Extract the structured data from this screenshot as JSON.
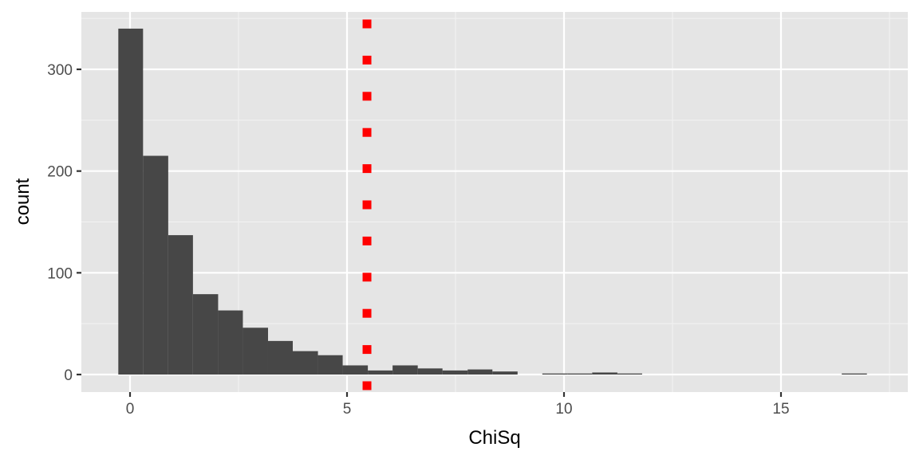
{
  "chart_data": {
    "type": "bar",
    "subtype": "histogram",
    "title": "",
    "xlabel": "ChiSq",
    "ylabel": "count",
    "xlim": [
      -1.15,
      17.65
    ],
    "ylim": [
      -17,
      357
    ],
    "x_ticks": [
      0,
      5,
      10,
      15
    ],
    "x_tick_labels": [
      "0",
      "5",
      "10",
      "15"
    ],
    "y_ticks": [
      0,
      100,
      200,
      300
    ],
    "y_tick_labels": [
      "0",
      "100",
      "200",
      "300"
    ],
    "grid": true,
    "legend": null,
    "bin_width": 0.575,
    "bins": [
      {
        "x0": -0.27,
        "x1": 0.3,
        "count": 340
      },
      {
        "x0": 0.3,
        "x1": 0.88,
        "count": 215
      },
      {
        "x0": 0.88,
        "x1": 1.45,
        "count": 137
      },
      {
        "x0": 1.45,
        "x1": 2.03,
        "count": 79
      },
      {
        "x0": 2.03,
        "x1": 2.6,
        "count": 63
      },
      {
        "x0": 2.6,
        "x1": 3.18,
        "count": 46
      },
      {
        "x0": 3.18,
        "x1": 3.75,
        "count": 33
      },
      {
        "x0": 3.75,
        "x1": 4.33,
        "count": 23
      },
      {
        "x0": 4.33,
        "x1": 4.9,
        "count": 19
      },
      {
        "x0": 4.9,
        "x1": 5.48,
        "count": 9
      },
      {
        "x0": 5.48,
        "x1": 6.05,
        "count": 4
      },
      {
        "x0": 6.05,
        "x1": 6.63,
        "count": 9
      },
      {
        "x0": 6.63,
        "x1": 7.2,
        "count": 6
      },
      {
        "x0": 7.2,
        "x1": 7.78,
        "count": 4
      },
      {
        "x0": 7.78,
        "x1": 8.35,
        "count": 5
      },
      {
        "x0": 8.35,
        "x1": 8.93,
        "count": 3
      },
      {
        "x0": 8.93,
        "x1": 9.5,
        "count": 0
      },
      {
        "x0": 9.5,
        "x1": 10.08,
        "count": 1
      },
      {
        "x0": 10.08,
        "x1": 10.65,
        "count": 1
      },
      {
        "x0": 10.65,
        "x1": 11.23,
        "count": 2
      },
      {
        "x0": 11.23,
        "x1": 11.8,
        "count": 1
      },
      {
        "x0": 16.4,
        "x1": 16.98,
        "count": 1
      }
    ],
    "reference_line": {
      "x": 5.46,
      "style": "dotted",
      "color": "#ff0000",
      "orientation": "vertical"
    },
    "colors": {
      "bar_fill": "#474747",
      "panel_bg": "#e5e5e5",
      "grid_major": "#ffffff",
      "grid_minor": "#f2f2f2",
      "tick_text": "#4d4d4d"
    }
  }
}
